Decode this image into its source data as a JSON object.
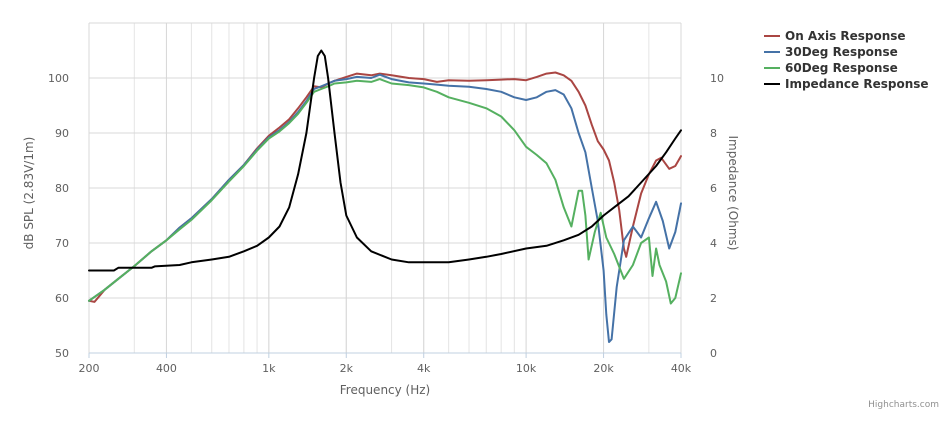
{
  "chart_data": {
    "type": "line",
    "title": "",
    "xlabel": "Frequency (Hz)",
    "ylabel": "dB SPL (2.83V/1m)",
    "y2label": "Impedance (Ohms)",
    "x_scale": "log",
    "xlim": [
      200,
      40000
    ],
    "ylim": [
      50,
      110
    ],
    "y2lim": [
      0,
      12
    ],
    "x_ticks": [
      200,
      400,
      1000,
      2000,
      4000,
      10000,
      20000,
      40000
    ],
    "x_tick_labels": [
      "200",
      "400",
      "1k",
      "2k",
      "4k",
      "10k",
      "20k",
      "40k"
    ],
    "y_ticks": [
      50,
      60,
      70,
      80,
      90,
      100
    ],
    "y2_ticks": [
      0,
      2,
      4,
      6,
      8,
      10
    ],
    "grid": true,
    "legend_position": "top-right",
    "series": [
      {
        "name": "On Axis Response",
        "color": "#aa4643",
        "axis": "left",
        "points": [
          [
            200,
            59.5
          ],
          [
            210,
            59.3
          ],
          [
            230,
            61.5
          ],
          [
            260,
            63.5
          ],
          [
            300,
            65.8
          ],
          [
            350,
            68.5
          ],
          [
            400,
            70.5
          ],
          [
            450,
            72.8
          ],
          [
            500,
            74.5
          ],
          [
            600,
            78
          ],
          [
            700,
            81.5
          ],
          [
            800,
            84.2
          ],
          [
            900,
            87.2
          ],
          [
            1000,
            89.5
          ],
          [
            1100,
            91
          ],
          [
            1200,
            92.5
          ],
          [
            1300,
            94.5
          ],
          [
            1400,
            96.5
          ],
          [
            1500,
            98.5
          ],
          [
            1600,
            98.3
          ],
          [
            1700,
            99
          ],
          [
            1800,
            99.5
          ],
          [
            2000,
            100.2
          ],
          [
            2200,
            100.8
          ],
          [
            2500,
            100.5
          ],
          [
            2700,
            100.8
          ],
          [
            3000,
            100.5
          ],
          [
            3500,
            100
          ],
          [
            4000,
            99.8
          ],
          [
            4500,
            99.3
          ],
          [
            5000,
            99.6
          ],
          [
            6000,
            99.5
          ],
          [
            7000,
            99.6
          ],
          [
            8000,
            99.7
          ],
          [
            9000,
            99.8
          ],
          [
            10000,
            99.6
          ],
          [
            11000,
            100.2
          ],
          [
            12000,
            100.8
          ],
          [
            13000,
            101
          ],
          [
            14000,
            100.5
          ],
          [
            15000,
            99.5
          ],
          [
            16000,
            97.5
          ],
          [
            17000,
            95
          ],
          [
            18000,
            91.5
          ],
          [
            19000,
            88.5
          ],
          [
            20000,
            87
          ],
          [
            21000,
            85
          ],
          [
            22000,
            81
          ],
          [
            23000,
            76
          ],
          [
            24000,
            69
          ],
          [
            24500,
            67.5
          ],
          [
            26000,
            73
          ],
          [
            28000,
            79
          ],
          [
            30000,
            82.5
          ],
          [
            32000,
            85
          ],
          [
            33500,
            85.5
          ],
          [
            36000,
            83.5
          ],
          [
            38000,
            84
          ],
          [
            40000,
            85.8
          ]
        ]
      },
      {
        "name": "30Deg Response",
        "color": "#4572a7",
        "axis": "left",
        "points": [
          [
            200,
            59.5
          ],
          [
            230,
            61.5
          ],
          [
            260,
            63.5
          ],
          [
            300,
            65.8
          ],
          [
            350,
            68.5
          ],
          [
            400,
            70.5
          ],
          [
            450,
            72.8
          ],
          [
            500,
            74.5
          ],
          [
            600,
            78
          ],
          [
            700,
            81.5
          ],
          [
            800,
            84.2
          ],
          [
            900,
            87
          ],
          [
            1000,
            89.2
          ],
          [
            1100,
            90.5
          ],
          [
            1200,
            92
          ],
          [
            1300,
            93.8
          ],
          [
            1400,
            95.8
          ],
          [
            1500,
            98
          ],
          [
            1600,
            98.5
          ],
          [
            1700,
            99
          ],
          [
            1800,
            99.5
          ],
          [
            2000,
            99.8
          ],
          [
            2200,
            100.2
          ],
          [
            2500,
            100
          ],
          [
            2700,
            100.6
          ],
          [
            3000,
            99.8
          ],
          [
            3500,
            99.2
          ],
          [
            4000,
            99
          ],
          [
            4500,
            98.8
          ],
          [
            5000,
            98.6
          ],
          [
            6000,
            98.4
          ],
          [
            7000,
            98
          ],
          [
            8000,
            97.5
          ],
          [
            9000,
            96.5
          ],
          [
            10000,
            96
          ],
          [
            11000,
            96.5
          ],
          [
            12000,
            97.5
          ],
          [
            13000,
            97.8
          ],
          [
            14000,
            97
          ],
          [
            15000,
            94.5
          ],
          [
            16000,
            90
          ],
          [
            17000,
            86.5
          ],
          [
            18000,
            80
          ],
          [
            19000,
            74
          ],
          [
            20000,
            65
          ],
          [
            20500,
            57
          ],
          [
            21000,
            52
          ],
          [
            21500,
            52.5
          ],
          [
            22500,
            62
          ],
          [
            24000,
            70.5
          ],
          [
            26000,
            73
          ],
          [
            28000,
            71
          ],
          [
            30000,
            74.5
          ],
          [
            32000,
            77.5
          ],
          [
            34000,
            74
          ],
          [
            36000,
            69
          ],
          [
            38000,
            72
          ],
          [
            40000,
            77.2
          ]
        ]
      },
      {
        "name": "60Deg Response",
        "color": "#55b060",
        "axis": "left",
        "points": [
          [
            200,
            59.5
          ],
          [
            230,
            61.5
          ],
          [
            260,
            63.5
          ],
          [
            300,
            65.8
          ],
          [
            350,
            68.5
          ],
          [
            400,
            70.5
          ],
          [
            450,
            72.5
          ],
          [
            500,
            74.2
          ],
          [
            600,
            77.8
          ],
          [
            700,
            81.2
          ],
          [
            800,
            84
          ],
          [
            900,
            86.8
          ],
          [
            1000,
            89
          ],
          [
            1100,
            90.3
          ],
          [
            1200,
            91.8
          ],
          [
            1300,
            93.5
          ],
          [
            1400,
            95.5
          ],
          [
            1500,
            97.5
          ],
          [
            1600,
            98
          ],
          [
            1700,
            98.5
          ],
          [
            1800,
            99
          ],
          [
            2000,
            99.2
          ],
          [
            2200,
            99.5
          ],
          [
            2500,
            99.3
          ],
          [
            2700,
            99.8
          ],
          [
            3000,
            99
          ],
          [
            3500,
            98.7
          ],
          [
            4000,
            98.3
          ],
          [
            4500,
            97.5
          ],
          [
            5000,
            96.5
          ],
          [
            6000,
            95.5
          ],
          [
            7000,
            94.5
          ],
          [
            8000,
            93
          ],
          [
            9000,
            90.5
          ],
          [
            10000,
            87.5
          ],
          [
            11000,
            86
          ],
          [
            12000,
            84.5
          ],
          [
            13000,
            81.5
          ],
          [
            14000,
            76.5
          ],
          [
            15000,
            73
          ],
          [
            16000,
            79.5
          ],
          [
            16500,
            79.5
          ],
          [
            17000,
            75
          ],
          [
            17500,
            67
          ],
          [
            18500,
            72
          ],
          [
            19500,
            75.5
          ],
          [
            20500,
            71
          ],
          [
            22000,
            68
          ],
          [
            24000,
            63.5
          ],
          [
            26000,
            66
          ],
          [
            28000,
            70
          ],
          [
            30000,
            71
          ],
          [
            31000,
            64
          ],
          [
            32000,
            69
          ],
          [
            33000,
            66
          ],
          [
            35000,
            63
          ],
          [
            36500,
            59
          ],
          [
            38000,
            60
          ],
          [
            40000,
            64.5
          ]
        ]
      },
      {
        "name": "Impedance Response",
        "color": "#000000",
        "axis": "right",
        "points": [
          [
            200,
            3
          ],
          [
            250,
            3
          ],
          [
            260,
            3.1
          ],
          [
            350,
            3.1
          ],
          [
            360,
            3.15
          ],
          [
            450,
            3.2
          ],
          [
            500,
            3.3
          ],
          [
            600,
            3.4
          ],
          [
            700,
            3.5
          ],
          [
            800,
            3.7
          ],
          [
            900,
            3.9
          ],
          [
            1000,
            4.2
          ],
          [
            1100,
            4.6
          ],
          [
            1200,
            5.3
          ],
          [
            1300,
            6.5
          ],
          [
            1400,
            8
          ],
          [
            1500,
            10
          ],
          [
            1550,
            10.8
          ],
          [
            1600,
            11
          ],
          [
            1650,
            10.8
          ],
          [
            1700,
            10
          ],
          [
            1800,
            8
          ],
          [
            1900,
            6.2
          ],
          [
            2000,
            5
          ],
          [
            2200,
            4.2
          ],
          [
            2500,
            3.7
          ],
          [
            3000,
            3.4
          ],
          [
            3500,
            3.3
          ],
          [
            4000,
            3.3
          ],
          [
            5000,
            3.3
          ],
          [
            6000,
            3.4
          ],
          [
            7000,
            3.5
          ],
          [
            8000,
            3.6
          ],
          [
            10000,
            3.8
          ],
          [
            12000,
            3.9
          ],
          [
            14000,
            4.1
          ],
          [
            16000,
            4.3
          ],
          [
            18000,
            4.6
          ],
          [
            20000,
            5
          ],
          [
            22000,
            5.3
          ],
          [
            25000,
            5.7
          ],
          [
            28000,
            6.2
          ],
          [
            32000,
            6.8
          ],
          [
            35000,
            7.3
          ],
          [
            38000,
            7.8
          ],
          [
            40000,
            8.1
          ]
        ]
      }
    ]
  },
  "credits": "Highcharts.com"
}
